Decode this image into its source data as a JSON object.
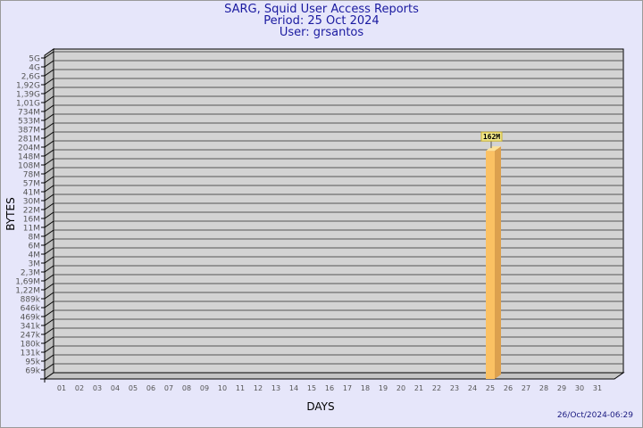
{
  "chart_data": {
    "type": "bar",
    "title": [
      "SARG, Squid User Access Reports",
      "Period: 25 Oct 2024",
      "User: grsantos"
    ],
    "xlabel": "DAYS",
    "ylabel": "BYTES",
    "y_scale": "log-like (non-uniform ticks)",
    "grid": true,
    "yticks": [
      "5G",
      "4G",
      "2,6G",
      "1,92G",
      "1,39G",
      "1,01G",
      "734M",
      "533M",
      "387M",
      "281M",
      "204M",
      "148M",
      "108M",
      "78M",
      "57M",
      "41M",
      "30M",
      "22M",
      "16M",
      "11M",
      "8M",
      "6M",
      "4M",
      "3M",
      "2,3M",
      "1,69M",
      "1,22M",
      "889k",
      "646k",
      "469k",
      "341k",
      "247k",
      "180k",
      "131k",
      "95k",
      "69k"
    ],
    "categories": [
      "01",
      "02",
      "03",
      "04",
      "05",
      "06",
      "07",
      "08",
      "09",
      "10",
      "11",
      "12",
      "13",
      "14",
      "15",
      "16",
      "17",
      "18",
      "19",
      "20",
      "21",
      "22",
      "23",
      "24",
      "25",
      "26",
      "27",
      "28",
      "29",
      "30",
      "31"
    ],
    "bars": [
      {
        "day": "25",
        "value": "162M",
        "label": "162M"
      }
    ],
    "colors": {
      "bar": "#fbc163",
      "bar_side": "#dca04e",
      "bar_top": "#fde39b",
      "wall": "#d3d3d3",
      "label_bg": "#f2e88a"
    }
  },
  "timestamp": "26/Oct/2024-06:29"
}
